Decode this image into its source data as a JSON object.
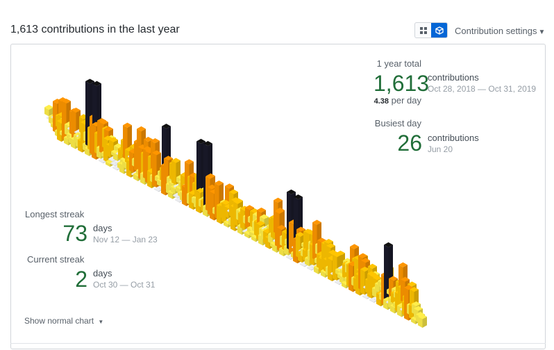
{
  "header": {
    "title": "1,613 contributions in the last year",
    "settings_label": "Contribution settings",
    "view_toggle": {
      "options": [
        "grid-icon",
        "cube-icon"
      ],
      "selected": "cube-icon"
    }
  },
  "year_total": {
    "label": "1 year total",
    "value": "1,613",
    "unit": "contributions",
    "dates": "Oct 28, 2018 — Oct 31, 2019",
    "per_day_value": "4.38",
    "per_day_label": "per day"
  },
  "busiest_day": {
    "label": "Busiest day",
    "value": "26",
    "unit": "contributions",
    "date": "Jun 20"
  },
  "longest_streak": {
    "label": "Longest streak",
    "value": "73",
    "unit": "days",
    "dates": "Nov 12 — Jan 23"
  },
  "current_streak": {
    "label": "Current streak",
    "value": "2",
    "unit": "days",
    "dates": "Oct 30 — Oct 31"
  },
  "footer": {
    "show_normal_label": "Show normal chart"
  },
  "colors": {
    "level0": "#ebedf0",
    "level1": "#ffee4a",
    "level2": "#ffc501",
    "level3": "#fe9600",
    "level4": "#03001c",
    "accent_green": "#216e39",
    "toggle_active": "#0366d6"
  }
}
